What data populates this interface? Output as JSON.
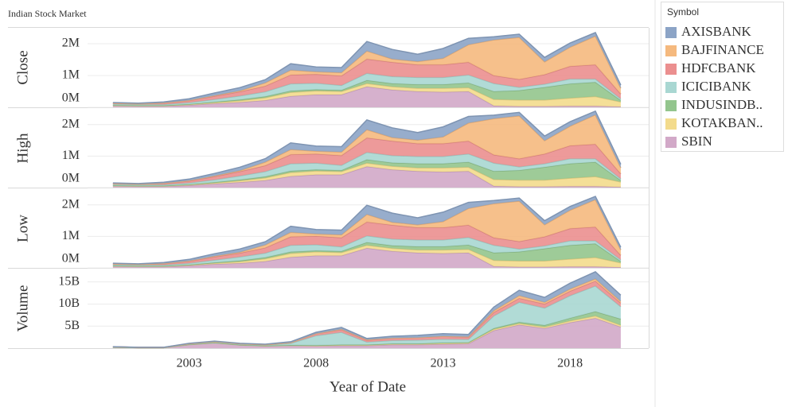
{
  "chart_data": {
    "type": "area",
    "title": "Indian Stock Market",
    "x_label": "Year of Date",
    "legend_title": "Symbol",
    "x": [
      2000,
      2001,
      2002,
      2003,
      2004,
      2005,
      2006,
      2007,
      2008,
      2009,
      2010,
      2011,
      2012,
      2013,
      2014,
      2015,
      2016,
      2017,
      2018,
      2019,
      2020
    ],
    "xlim": [
      1999,
      2021.1
    ],
    "xticks": [
      2003,
      2008,
      2013,
      2018
    ],
    "series": [
      {
        "name": "AXISBANK",
        "color": "#8ca4c6"
      },
      {
        "name": "BAJFINANCE",
        "color": "#f5b97e"
      },
      {
        "name": "HDFCBANK",
        "color": "#eb8f8f"
      },
      {
        "name": "ICICIBANK",
        "color": "#a9d7d2"
      },
      {
        "name": "INDUSINDB..",
        "color": "#93c58d"
      },
      {
        "name": "KOTAKBAN..",
        "color": "#f3db8c"
      },
      {
        "name": "SBIN",
        "color": "#d2a9c8"
      }
    ],
    "panels": [
      {
        "y_label": "Close",
        "ylim": [
          0,
          2.5
        ],
        "yticks": [
          {
            "value": 0,
            "label": "0M"
          },
          {
            "value": 1,
            "label": "1M"
          },
          {
            "value": 2,
            "label": "2M"
          }
        ],
        "values": [
          [
            0.02,
            0.02,
            0.03,
            0.05,
            0.08,
            0.1,
            0.1,
            0.2,
            0.15,
            0.16,
            0.3,
            0.3,
            0.23,
            0.31,
            0.2,
            0.1,
            0.1,
            0.14,
            0.13,
            0.11,
            0.1
          ],
          [
            0,
            0,
            0.01,
            0.01,
            0.02,
            0.03,
            0.1,
            0.15,
            0.08,
            0.1,
            0.25,
            0.1,
            0.1,
            0.2,
            0.55,
            1.12,
            1.32,
            0.4,
            0.6,
            0.9,
            0.18
          ],
          [
            0.03,
            0.02,
            0.04,
            0.06,
            0.1,
            0.13,
            0.18,
            0.28,
            0.28,
            0.3,
            0.45,
            0.45,
            0.4,
            0.4,
            0.4,
            0.25,
            0.25,
            0.3,
            0.4,
            0.45,
            0.15
          ],
          [
            0.03,
            0.03,
            0.03,
            0.05,
            0.08,
            0.12,
            0.15,
            0.22,
            0.2,
            0.15,
            0.22,
            0.22,
            0.22,
            0.22,
            0.25,
            0.25,
            0.1,
            0.1,
            0.15,
            0.1,
            0.05
          ],
          [
            0.01,
            0.01,
            0.01,
            0.01,
            0.02,
            0.03,
            0.04,
            0.05,
            0.04,
            0.04,
            0.1,
            0.1,
            0.12,
            0.12,
            0.15,
            0.25,
            0.3,
            0.4,
            0.45,
            0.45,
            0.05
          ],
          [
            0.01,
            0.01,
            0.01,
            0.02,
            0.03,
            0.05,
            0.08,
            0.12,
            0.12,
            0.1,
            0.1,
            0.1,
            0.1,
            0.12,
            0.12,
            0.2,
            0.2,
            0.2,
            0.25,
            0.3,
            0.15
          ],
          [
            0.05,
            0.04,
            0.04,
            0.07,
            0.12,
            0.16,
            0.22,
            0.35,
            0.4,
            0.4,
            0.65,
            0.55,
            0.5,
            0.48,
            0.5,
            0.05,
            0.03,
            0.03,
            0.04,
            0.04,
            0.02
          ]
        ]
      },
      {
        "y_label": "High",
        "ylim": [
          0,
          2.5
        ],
        "yticks": [
          {
            "value": 0,
            "label": "0M"
          },
          {
            "value": 1,
            "label": "1M"
          },
          {
            "value": 2,
            "label": "2M"
          }
        ],
        "values": [
          [
            0.02,
            0.02,
            0.03,
            0.05,
            0.08,
            0.11,
            0.11,
            0.21,
            0.16,
            0.17,
            0.31,
            0.31,
            0.24,
            0.32,
            0.21,
            0.11,
            0.11,
            0.15,
            0.14,
            0.12,
            0.11
          ],
          [
            0,
            0,
            0.01,
            0.01,
            0.02,
            0.03,
            0.11,
            0.16,
            0.09,
            0.11,
            0.26,
            0.11,
            0.11,
            0.21,
            0.57,
            1.15,
            1.36,
            0.42,
            0.62,
            0.93,
            0.19
          ],
          [
            0.03,
            0.02,
            0.04,
            0.06,
            0.1,
            0.14,
            0.19,
            0.29,
            0.29,
            0.31,
            0.46,
            0.46,
            0.41,
            0.41,
            0.41,
            0.26,
            0.26,
            0.31,
            0.41,
            0.46,
            0.16
          ],
          [
            0.03,
            0.03,
            0.03,
            0.05,
            0.08,
            0.12,
            0.16,
            0.23,
            0.21,
            0.16,
            0.23,
            0.23,
            0.23,
            0.23,
            0.26,
            0.26,
            0.11,
            0.11,
            0.16,
            0.11,
            0.05
          ],
          [
            0.01,
            0.01,
            0.01,
            0.01,
            0.02,
            0.03,
            0.04,
            0.05,
            0.04,
            0.04,
            0.11,
            0.11,
            0.13,
            0.13,
            0.16,
            0.26,
            0.31,
            0.41,
            0.46,
            0.46,
            0.05
          ],
          [
            0.01,
            0.01,
            0.01,
            0.02,
            0.03,
            0.05,
            0.08,
            0.12,
            0.12,
            0.1,
            0.11,
            0.11,
            0.11,
            0.13,
            0.13,
            0.21,
            0.21,
            0.21,
            0.26,
            0.31,
            0.16
          ],
          [
            0.05,
            0.04,
            0.04,
            0.07,
            0.12,
            0.17,
            0.23,
            0.36,
            0.41,
            0.41,
            0.67,
            0.57,
            0.52,
            0.5,
            0.52,
            0.05,
            0.03,
            0.03,
            0.04,
            0.04,
            0.02
          ]
        ]
      },
      {
        "y_label": "Low",
        "ylim": [
          0,
          2.5
        ],
        "yticks": [
          {
            "value": 0,
            "label": "0M"
          },
          {
            "value": 1,
            "label": "1M"
          },
          {
            "value": 2,
            "label": "2M"
          }
        ],
        "values": [
          [
            0.02,
            0.02,
            0.03,
            0.05,
            0.08,
            0.1,
            0.1,
            0.19,
            0.14,
            0.15,
            0.29,
            0.29,
            0.22,
            0.3,
            0.19,
            0.1,
            0.1,
            0.13,
            0.12,
            0.1,
            0.09
          ],
          [
            0,
            0,
            0.01,
            0.01,
            0.02,
            0.03,
            0.09,
            0.14,
            0.07,
            0.09,
            0.24,
            0.09,
            0.09,
            0.19,
            0.53,
            1.08,
            1.28,
            0.38,
            0.58,
            0.87,
            0.17
          ],
          [
            0.03,
            0.02,
            0.04,
            0.06,
            0.1,
            0.12,
            0.17,
            0.27,
            0.27,
            0.29,
            0.44,
            0.44,
            0.39,
            0.39,
            0.39,
            0.24,
            0.24,
            0.29,
            0.39,
            0.44,
            0.14
          ],
          [
            0.03,
            0.03,
            0.03,
            0.05,
            0.08,
            0.12,
            0.14,
            0.21,
            0.19,
            0.14,
            0.21,
            0.21,
            0.21,
            0.21,
            0.24,
            0.24,
            0.09,
            0.09,
            0.14,
            0.09,
            0.05
          ],
          [
            0.01,
            0.01,
            0.01,
            0.01,
            0.02,
            0.03,
            0.04,
            0.05,
            0.04,
            0.04,
            0.09,
            0.09,
            0.11,
            0.11,
            0.14,
            0.24,
            0.29,
            0.39,
            0.44,
            0.44,
            0.05
          ],
          [
            0.01,
            0.01,
            0.01,
            0.02,
            0.03,
            0.05,
            0.08,
            0.12,
            0.12,
            0.1,
            0.09,
            0.09,
            0.09,
            0.11,
            0.11,
            0.19,
            0.19,
            0.19,
            0.24,
            0.29,
            0.14
          ],
          [
            0.05,
            0.04,
            0.04,
            0.07,
            0.12,
            0.15,
            0.21,
            0.34,
            0.39,
            0.39,
            0.63,
            0.53,
            0.48,
            0.46,
            0.48,
            0.05,
            0.03,
            0.03,
            0.04,
            0.04,
            0.02
          ]
        ]
      },
      {
        "y_label": "Volume",
        "ylim": [
          0,
          18
        ],
        "yticks": [
          {
            "value": 5,
            "label": "5B"
          },
          {
            "value": 10,
            "label": "10B"
          },
          {
            "value": 15,
            "label": "15B"
          }
        ],
        "values": [
          [
            0.05,
            0.02,
            0.02,
            0.1,
            0.1,
            0.1,
            0.1,
            0.2,
            0.3,
            0.4,
            0.3,
            0.4,
            0.5,
            0.6,
            0.5,
            0.8,
            1.2,
            1.1,
            1.3,
            1.6,
            1.4
          ],
          [
            0,
            0,
            0,
            0,
            0,
            0,
            0,
            0,
            0.05,
            0.1,
            0.1,
            0.05,
            0.05,
            0.05,
            0.1,
            0.4,
            0.6,
            0.4,
            0.5,
            0.5,
            0.4
          ],
          [
            0.05,
            0.03,
            0.03,
            0.06,
            0.1,
            0.1,
            0.09,
            0.15,
            0.4,
            0.6,
            0.4,
            0.5,
            0.5,
            0.6,
            0.5,
            0.8,
            0.9,
            0.9,
            1.0,
            1.1,
            0.8
          ],
          [
            0.05,
            0.05,
            0.05,
            0.1,
            0.15,
            0.15,
            0.15,
            0.4,
            2.2,
            2.8,
            0.6,
            0.7,
            0.8,
            0.8,
            0.7,
            2.8,
            4.5,
            3.9,
            5.1,
            5.8,
            2.8
          ],
          [
            0,
            0,
            0,
            0.02,
            0.02,
            0.02,
            0.03,
            0.05,
            0.1,
            0.1,
            0.1,
            0.1,
            0.1,
            0.15,
            0.1,
            0.2,
            0.3,
            0.4,
            0.6,
            1.0,
            1.4
          ],
          [
            0,
            0,
            0,
            0.02,
            0.03,
            0.03,
            0.03,
            0.05,
            0.05,
            0.1,
            0.1,
            0.15,
            0.15,
            0.2,
            0.2,
            0.3,
            0.3,
            0.3,
            0.4,
            0.5,
            0.4
          ],
          [
            0.2,
            0.1,
            0.1,
            0.8,
            1.2,
            0.7,
            0.5,
            0.6,
            0.5,
            0.6,
            0.6,
            0.8,
            0.8,
            0.9,
            1.0,
            4.0,
            5.3,
            4.5,
            5.8,
            6.8,
            4.8
          ]
        ]
      }
    ]
  }
}
